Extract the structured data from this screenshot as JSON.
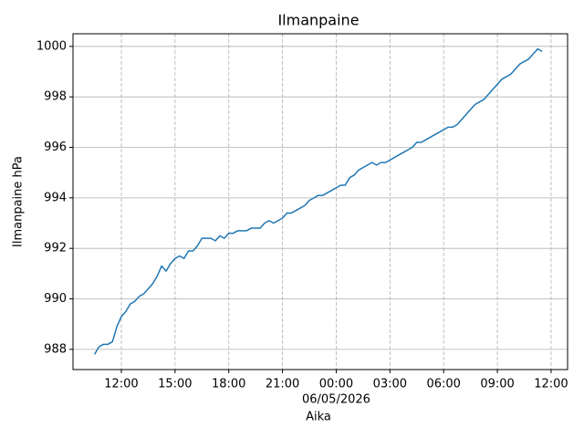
{
  "chart_data": {
    "type": "line",
    "title": "Ilmanpaine",
    "x_label": "Aika",
    "y_label": "Ilmanpaine hPa",
    "x_date_label": "06/05/2026",
    "x": [
      -13.5,
      -13.25,
      -13,
      -12.75,
      -12.5,
      -12.25,
      -12,
      -11.75,
      -11.5,
      -11.25,
      -11,
      -10.75,
      -10.5,
      -10.25,
      -10,
      -9.75,
      -9.5,
      -9.25,
      -9,
      -8.75,
      -8.5,
      -8.25,
      -8,
      -7.75,
      -7.5,
      -7.25,
      -7,
      -6.75,
      -6.5,
      -6.25,
      -6,
      -5.75,
      -5.5,
      -5.25,
      -5,
      -4.75,
      -4.5,
      -4.25,
      -4,
      -3.75,
      -3.5,
      -3.25,
      -3,
      -2.75,
      -2.5,
      -2.25,
      -2,
      -1.75,
      -1.5,
      -1.25,
      -1,
      -0.75,
      -0.5,
      -0.25,
      0,
      0.25,
      0.5,
      0.75,
      1,
      1.25,
      1.5,
      1.75,
      2,
      2.25,
      2.5,
      2.75,
      3,
      3.25,
      3.5,
      3.75,
      4,
      4.25,
      4.5,
      4.75,
      5,
      5.25,
      5.5,
      5.75,
      6,
      6.25,
      6.5,
      6.75,
      7,
      7.25,
      7.5,
      7.75,
      8,
      8.25,
      8.5,
      8.75,
      9,
      9.25,
      9.5,
      9.75,
      10,
      10.25,
      10.5,
      10.75,
      11,
      11.25,
      11.5
    ],
    "series": [
      {
        "name": "Ilmanpaine",
        "color": "#1f77b4",
        "values": [
          987.8,
          988.1,
          988.2,
          988.2,
          988.3,
          988.9,
          989.3,
          989.5,
          989.8,
          989.9,
          990.1,
          990.2,
          990.4,
          990.6,
          990.9,
          991.3,
          991.1,
          991.4,
          991.6,
          991.7,
          991.6,
          991.9,
          991.9,
          992.1,
          992.4,
          992.4,
          992.4,
          992.3,
          992.5,
          992.4,
          992.6,
          992.6,
          992.7,
          992.7,
          992.7,
          992.8,
          992.8,
          992.8,
          993.0,
          993.1,
          993.0,
          993.1,
          993.2,
          993.4,
          993.4,
          993.5,
          993.6,
          993.7,
          993.9,
          994.0,
          994.1,
          994.1,
          994.2,
          994.3,
          994.4,
          994.5,
          994.5,
          994.8,
          994.9,
          995.1,
          995.2,
          995.3,
          995.4,
          995.3,
          995.4,
          995.4,
          995.5,
          995.6,
          995.7,
          995.8,
          995.9,
          996.0,
          996.2,
          996.2,
          996.3,
          996.4,
          996.5,
          996.6,
          996.7,
          996.8,
          996.8,
          996.9,
          997.1,
          997.3,
          997.5,
          997.7,
          997.8,
          997.9,
          998.1,
          998.3,
          998.5,
          998.7,
          998.8,
          998.9,
          999.1,
          999.3,
          999.4,
          999.5,
          999.7,
          999.9,
          999.8
        ]
      }
    ],
    "xlim": [
      -14.7,
      12.92
    ],
    "ylim": [
      987.2,
      1000.5
    ],
    "xticks": [
      {
        "value": -12,
        "label": "12:00"
      },
      {
        "value": -9,
        "label": "15:00"
      },
      {
        "value": -6,
        "label": "18:00"
      },
      {
        "value": -3,
        "label": "21:00"
      },
      {
        "value": 0,
        "label": "00:00"
      },
      {
        "value": 3,
        "label": "03:00"
      },
      {
        "value": 6,
        "label": "06:00"
      },
      {
        "value": 9,
        "label": "09:00"
      },
      {
        "value": 12,
        "label": "12:00"
      }
    ],
    "yticks": [
      988,
      990,
      992,
      994,
      996,
      998,
      1000
    ],
    "grid": true
  }
}
